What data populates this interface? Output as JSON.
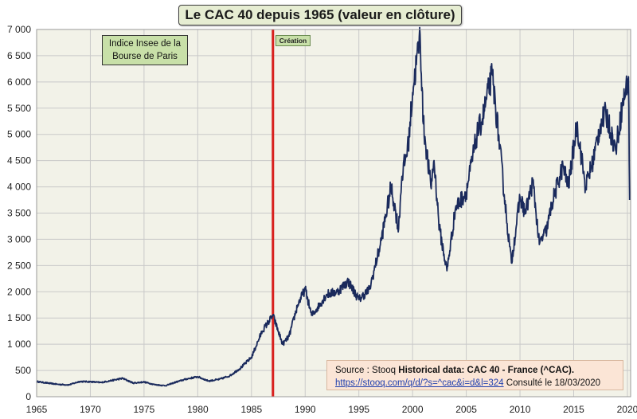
{
  "chart_data": {
    "type": "line",
    "title": "Le CAC 40 depuis 1965 (valeur en clôture)",
    "xlabel": "",
    "ylabel": "",
    "xlim": [
      1965,
      2020.3
    ],
    "ylim": [
      0,
      7000
    ],
    "grid": true,
    "x_ticks": [
      1965,
      1970,
      1975,
      1980,
      1985,
      1990,
      1995,
      2000,
      2005,
      2010,
      2015,
      2020
    ],
    "y_ticks": [
      {
        "value": 0,
        "label": "0"
      },
      {
        "value": 500,
        "label": "500"
      },
      {
        "value": 1000,
        "label": "1 000"
      },
      {
        "value": 1500,
        "label": "1 500"
      },
      {
        "value": 2000,
        "label": "2 000"
      },
      {
        "value": 2500,
        "label": "2 500"
      },
      {
        "value": 3000,
        "label": "3 000"
      },
      {
        "value": 3500,
        "label": "3 500"
      },
      {
        "value": 4000,
        "label": "4 000"
      },
      {
        "value": 4500,
        "label": "4 500"
      },
      {
        "value": 5000,
        "label": "5 000"
      },
      {
        "value": 5500,
        "label": "5 500"
      },
      {
        "value": 6000,
        "label": "6 000"
      },
      {
        "value": 6500,
        "label": "6 500"
      },
      {
        "value": 7000,
        "label": "7 000"
      }
    ],
    "series": [
      {
        "name": "CAC 40",
        "color": "#1a2a5c",
        "points": [
          [
            1965.0,
            290
          ],
          [
            1966.0,
            260
          ],
          [
            1967.0,
            235
          ],
          [
            1968.0,
            225
          ],
          [
            1969.0,
            290
          ],
          [
            1970.0,
            285
          ],
          [
            1971.0,
            270
          ],
          [
            1972.0,
            310
          ],
          [
            1973.0,
            350
          ],
          [
            1974.0,
            260
          ],
          [
            1975.0,
            280
          ],
          [
            1976.0,
            230
          ],
          [
            1977.0,
            210
          ],
          [
            1978.0,
            280
          ],
          [
            1979.0,
            340
          ],
          [
            1980.0,
            380
          ],
          [
            1981.0,
            300
          ],
          [
            1982.0,
            330
          ],
          [
            1983.0,
            400
          ],
          [
            1984.0,
            550
          ],
          [
            1985.0,
            750
          ],
          [
            1986.0,
            1250
          ],
          [
            1987.0,
            1550
          ],
          [
            1987.9,
            1000
          ],
          [
            1988.5,
            1150
          ],
          [
            1989.3,
            1750
          ],
          [
            1990.0,
            2050
          ],
          [
            1990.6,
            1550
          ],
          [
            1991.0,
            1650
          ],
          [
            1992.0,
            1950
          ],
          [
            1993.0,
            2000
          ],
          [
            1994.0,
            2200
          ],
          [
            1995.0,
            1850
          ],
          [
            1996.0,
            2050
          ],
          [
            1997.0,
            2900
          ],
          [
            1998.0,
            4000
          ],
          [
            1998.7,
            3200
          ],
          [
            1999.0,
            4200
          ],
          [
            1999.6,
            4800
          ],
          [
            2000.0,
            5800
          ],
          [
            2000.7,
            6900
          ],
          [
            2001.0,
            5200
          ],
          [
            2001.7,
            4000
          ],
          [
            2002.0,
            4500
          ],
          [
            2002.5,
            3200
          ],
          [
            2003.2,
            2400
          ],
          [
            2004.0,
            3600
          ],
          [
            2005.0,
            3900
          ],
          [
            2006.0,
            5000
          ],
          [
            2006.5,
            5300
          ],
          [
            2007.4,
            6150
          ],
          [
            2008.0,
            5000
          ],
          [
            2008.8,
            3300
          ],
          [
            2009.2,
            2550
          ],
          [
            2010.0,
            3800
          ],
          [
            2010.5,
            3500
          ],
          [
            2011.2,
            4100
          ],
          [
            2011.8,
            2900
          ],
          [
            2012.5,
            3200
          ],
          [
            2013.0,
            3700
          ],
          [
            2014.0,
            4400
          ],
          [
            2014.5,
            4000
          ],
          [
            2015.3,
            5200
          ],
          [
            2016.1,
            4000
          ],
          [
            2016.8,
            4500
          ],
          [
            2017.5,
            5200
          ],
          [
            2018.0,
            5400
          ],
          [
            2018.9,
            4700
          ],
          [
            2019.5,
            5500
          ],
          [
            2020.1,
            6100
          ],
          [
            2020.2,
            3750
          ]
        ]
      }
    ],
    "vertical_marker": {
      "x": 1987.0,
      "label": "Création",
      "color": "#d8201e"
    },
    "annotation": {
      "line1": "Indice Insee de la",
      "line2": "Bourse de Paris"
    }
  },
  "source": {
    "prefix": "Source : Stooq ",
    "bold_text": "Historical data: CAC 40 - France (^CAC).",
    "link": "https://stooq.com/q/d/?s=^cac&i=d&l=324",
    "suffix": " Consulté le 18/03/2020"
  },
  "colors": {
    "plot_background": "#f2f2e8",
    "title_background": "#e6edd2",
    "label_background": "#c8e0a8",
    "source_background": "#fbe5d6"
  }
}
